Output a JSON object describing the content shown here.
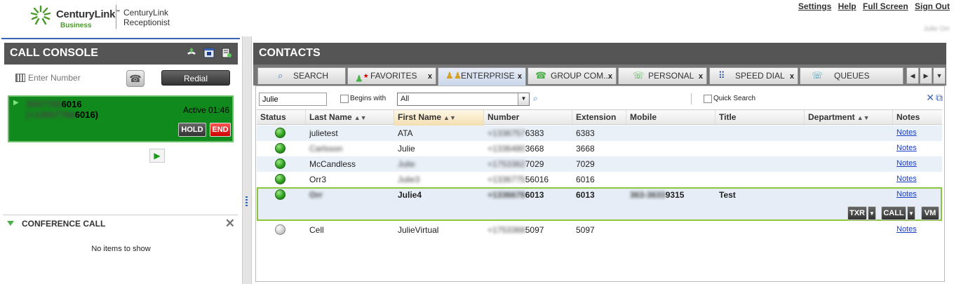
{
  "header": {
    "brand_name": "CenturyLink",
    "brand_tm": "™",
    "brand_sub": "Business",
    "product_line1": "CenturyLink",
    "product_line2": "Receptionist",
    "links": [
      "Settings",
      "Help",
      "Full Screen",
      "Sign Out"
    ],
    "user_name": "Julie Orr"
  },
  "call_console": {
    "title": "CALL CONSOLE",
    "enter_placeholder": "Enter Number",
    "redial_label": "Redial",
    "active_call": {
      "number_hidden": "3567766",
      "number_suffix": "6016",
      "number2_hidden": "(+13567766",
      "number2_suffix": "6016)",
      "status": "Active 01:46",
      "hold_label": "HOLD",
      "end_label": "END"
    }
  },
  "conference": {
    "title": "CONFERENCE CALL",
    "empty_text": "No items to show"
  },
  "contacts": {
    "title": "CONTACTS",
    "tabs": [
      {
        "label": "SEARCH",
        "icon": "search-icon",
        "closable": false
      },
      {
        "label": "FAVORITES",
        "icon": "favorites-icon",
        "closable": true
      },
      {
        "label": "ENTERPRISE",
        "icon": "enterprise-icon",
        "closable": true
      },
      {
        "label": "GROUP COM...",
        "icon": "group-icon",
        "closable": true
      },
      {
        "label": "PERSONAL",
        "icon": "personal-icon",
        "closable": true
      },
      {
        "label": "SPEED DIAL",
        "icon": "speed-dial-icon",
        "closable": true
      },
      {
        "label": "QUEUES",
        "icon": "queues-icon",
        "closable": true
      }
    ],
    "tab_close": "x",
    "search_value": "Julie",
    "begins_with_label": "Begins with",
    "filter_value": "All",
    "quick_search_label": "Quick Search",
    "columns": [
      "Status",
      "Last Name",
      "First Name",
      "Number",
      "Extension",
      "Mobile",
      "Title",
      "Department",
      "Notes"
    ],
    "rows": [
      {
        "status": "online",
        "last": "julietest",
        "first": "ATA",
        "number_hidden": "+1336757",
        "number": "6383",
        "ext": "6383",
        "mobile_hidden": "",
        "mobile": "",
        "title": "",
        "notes": "Notes"
      },
      {
        "status": "online",
        "last_hidden": "Carlsson",
        "last": "",
        "first": "Julie",
        "number_hidden": "+1336480",
        "number": "3668",
        "ext": "3668",
        "mobile_hidden": "",
        "mobile": "",
        "title": "",
        "notes": "Notes"
      },
      {
        "status": "online",
        "last": "McCandless",
        "first_hidden": "Julie",
        "first": "",
        "number_hidden": "+1753362",
        "number": "7029",
        "ext": "7029",
        "mobile_hidden": "",
        "mobile": "",
        "title": "",
        "notes": "Notes"
      },
      {
        "status": "online",
        "last": "Orr3",
        "first_hidden": "Julie3",
        "first": "",
        "number_hidden": "+1336775",
        "number": "56016",
        "ext": "6016",
        "mobile_hidden": "",
        "mobile": "",
        "title": "",
        "notes": "Notes"
      },
      {
        "status": "online",
        "last_hidden": "Orr",
        "last": "",
        "first": "Julie4",
        "number_hidden": "+1336678",
        "number": "6013",
        "ext": "6013",
        "mobile_hidden": "363-3633",
        "mobile": "9315",
        "title": "Test",
        "notes": "Notes",
        "selected": true
      },
      {
        "status": "offline",
        "last": "Cell",
        "first": "JulieVirtual",
        "number_hidden": "+1753368",
        "number": "5097",
        "ext": "5097",
        "mobile_hidden": "",
        "mobile": "",
        "title": "",
        "notes": "Notes"
      }
    ],
    "row_actions": {
      "txr": "TXR",
      "call": "CALL",
      "vm": "VM"
    }
  },
  "colors": {
    "panel_header": "#555555",
    "active_call": "#108a1c",
    "selection_border": "#8cc63f",
    "link": "#1a3ec8"
  }
}
